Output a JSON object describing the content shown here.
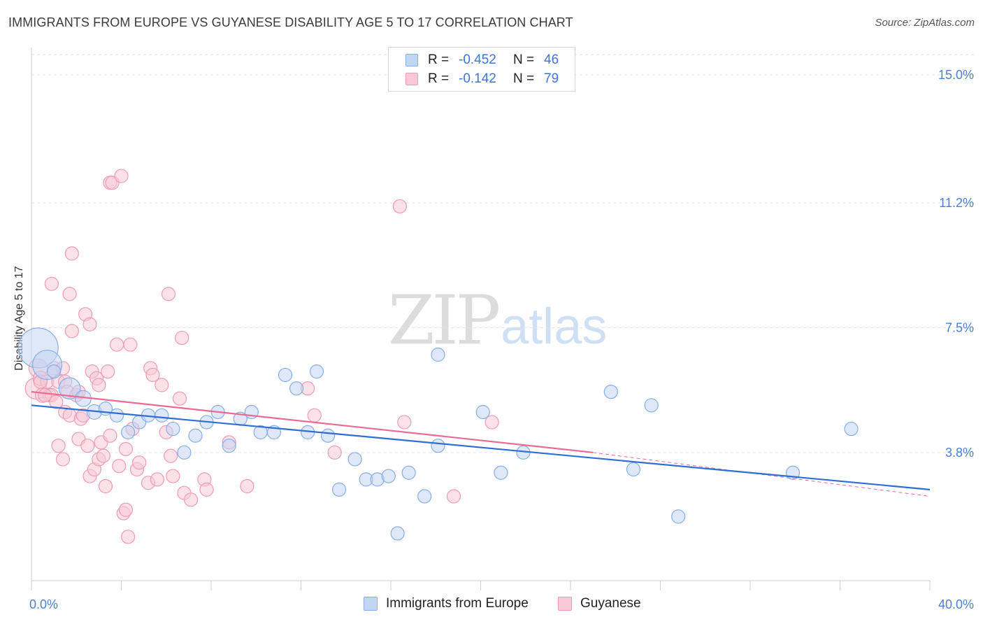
{
  "title": "IMMIGRANTS FROM EUROPE VS GUYANESE DISABILITY AGE 5 TO 17 CORRELATION CHART",
  "source": "Source: ZipAtlas.com",
  "watermark": {
    "left": "ZIP",
    "right": "atlas"
  },
  "colors": {
    "blue_fill": "#c2d6f3",
    "blue_stroke": "#86aee6",
    "blue_line": "#2f6ed2",
    "pink_fill": "#f8c8d6",
    "pink_stroke": "#ee9bb5",
    "pink_line": "#e86b93",
    "grid": "#e3e3e3",
    "axis_label": "#4a7fd4"
  },
  "legend": {
    "rows": [
      {
        "r_label": "R =",
        "r_value": "-0.452",
        "n_label": "N =",
        "n_value": "46",
        "color": "blue"
      },
      {
        "r_label": "R =",
        "r_value": "-0.142",
        "n_label": "N =",
        "n_value": "79",
        "color": "pink"
      }
    ]
  },
  "bottom_legend": [
    {
      "label": "Immigrants from Europe",
      "color": "blue"
    },
    {
      "label": "Guyanese",
      "color": "pink"
    }
  ],
  "chart_data": {
    "type": "scatter",
    "title": "IMMIGRANTS FROM EUROPE VS GUYANESE DISABILITY AGE 5 TO 17 CORRELATION CHART",
    "xlabel": "",
    "ylabel": "Disability Age 5 to 17",
    "xlim": [
      0,
      40
    ],
    "ylim": [
      0,
      15.6
    ],
    "x_tick_labels": [
      "0.0%",
      "40.0%"
    ],
    "y_ticks": [
      3.8,
      7.5,
      11.2,
      15.0
    ],
    "y_tick_labels": [
      "3.8%",
      "7.5%",
      "11.2%",
      "15.0%"
    ],
    "grid": true,
    "legend_position": "top-center",
    "series": [
      {
        "name": "Immigrants from Europe",
        "color": "blue",
        "r": -0.452,
        "n": 46,
        "trend": {
          "x": [
            0,
            40
          ],
          "y": [
            5.2,
            2.7
          ]
        },
        "points": [
          [
            0.3,
            6.9,
            3
          ],
          [
            0.7,
            6.4,
            2.2
          ],
          [
            1.7,
            5.7,
            1.6
          ],
          [
            2.3,
            5.4,
            1.2
          ],
          [
            2.8,
            5.0,
            1.1
          ],
          [
            3.3,
            5.1,
            1
          ],
          [
            3.8,
            4.9,
            1
          ],
          [
            4.3,
            4.4,
            1
          ],
          [
            4.8,
            4.7,
            1
          ],
          [
            5.2,
            4.9,
            1
          ],
          [
            5.8,
            4.9,
            1
          ],
          [
            6.3,
            4.5,
            1
          ],
          [
            6.8,
            3.8,
            1
          ],
          [
            7.3,
            4.3,
            1
          ],
          [
            7.8,
            4.7,
            1
          ],
          [
            8.3,
            5.0,
            1
          ],
          [
            8.8,
            4.0,
            1
          ],
          [
            9.3,
            4.8,
            1
          ],
          [
            9.8,
            5.0,
            1
          ],
          [
            10.2,
            4.4,
            1
          ],
          [
            10.8,
            4.4,
            1
          ],
          [
            11.3,
            6.1,
            1
          ],
          [
            11.8,
            5.7,
            1
          ],
          [
            12.3,
            4.4,
            1
          ],
          [
            12.7,
            6.2,
            1
          ],
          [
            13.2,
            4.3,
            1
          ],
          [
            13.7,
            2.7,
            1
          ],
          [
            14.4,
            3.6,
            1
          ],
          [
            14.9,
            3.0,
            1
          ],
          [
            15.4,
            3.0,
            1
          ],
          [
            15.9,
            3.1,
            1
          ],
          [
            16.3,
            1.4,
            1
          ],
          [
            16.8,
            3.2,
            1
          ],
          [
            17.5,
            2.5,
            1
          ],
          [
            18.1,
            6.7,
            1
          ],
          [
            18.1,
            4.0,
            1
          ],
          [
            20.1,
            5.0,
            1
          ],
          [
            20.9,
            3.2,
            1
          ],
          [
            21.9,
            3.8,
            1
          ],
          [
            25.8,
            5.6,
            1
          ],
          [
            26.8,
            3.3,
            1
          ],
          [
            27.6,
            5.2,
            1
          ],
          [
            28.8,
            1.9,
            1
          ],
          [
            33.9,
            3.2,
            1
          ],
          [
            36.5,
            4.5,
            1
          ],
          [
            1.0,
            6.2,
            1
          ]
        ]
      },
      {
        "name": "Guyanese",
        "color": "pink",
        "r": -0.142,
        "n": 79,
        "trend": {
          "x": [
            0,
            25
          ],
          "y": [
            5.6,
            3.8
          ],
          "dashed_extension": {
            "x": [
              25,
              40
            ],
            "y": [
              3.8,
              2.5
            ]
          }
        },
        "points": [
          [
            0.2,
            5.7,
            1.6
          ],
          [
            0.3,
            6.3,
            1.4
          ],
          [
            0.4,
            6.0,
            1.1
          ],
          [
            0.5,
            5.5,
            1.1
          ],
          [
            0.7,
            5.9,
            1
          ],
          [
            0.8,
            5.5,
            1
          ],
          [
            0.9,
            5.5,
            1
          ],
          [
            1.0,
            6.3,
            1
          ],
          [
            1.1,
            5.3,
            1
          ],
          [
            1.2,
            5.9,
            1
          ],
          [
            0.6,
            5.5,
            1
          ],
          [
            1.4,
            6.3,
            1
          ],
          [
            1.5,
            5.9,
            1
          ],
          [
            1.6,
            5.6,
            1
          ],
          [
            0.9,
            8.8,
            1
          ],
          [
            1.2,
            4.0,
            1
          ],
          [
            1.4,
            3.6,
            1
          ],
          [
            1.5,
            5.0,
            1
          ],
          [
            1.7,
            4.9,
            1
          ],
          [
            1.8,
            7.4,
            1
          ],
          [
            1.7,
            8.5,
            1
          ],
          [
            1.8,
            9.7,
            1
          ],
          [
            2.0,
            5.5,
            1
          ],
          [
            2.1,
            5.6,
            1
          ],
          [
            2.1,
            4.2,
            1
          ],
          [
            2.2,
            4.8,
            1
          ],
          [
            2.3,
            4.9,
            1
          ],
          [
            2.4,
            7.9,
            1
          ],
          [
            2.5,
            4.0,
            1
          ],
          [
            2.6,
            3.1,
            1
          ],
          [
            2.6,
            7.6,
            1
          ],
          [
            2.7,
            6.2,
            1
          ],
          [
            2.8,
            3.3,
            1
          ],
          [
            2.9,
            6.0,
            1
          ],
          [
            3.0,
            5.8,
            1
          ],
          [
            3.0,
            3.6,
            1
          ],
          [
            3.1,
            4.1,
            1
          ],
          [
            3.2,
            3.7,
            1
          ],
          [
            3.3,
            2.8,
            1
          ],
          [
            3.4,
            6.2,
            1
          ],
          [
            3.5,
            4.3,
            1
          ],
          [
            3.5,
            11.8,
            1
          ],
          [
            3.6,
            11.8,
            1
          ],
          [
            3.8,
            7.0,
            1
          ],
          [
            3.9,
            3.4,
            1
          ],
          [
            4.0,
            12.0,
            1
          ],
          [
            4.1,
            2.0,
            1
          ],
          [
            4.2,
            2.1,
            1
          ],
          [
            4.2,
            3.9,
            1
          ],
          [
            4.3,
            1.3,
            1
          ],
          [
            4.4,
            7.0,
            1
          ],
          [
            4.5,
            4.5,
            1
          ],
          [
            4.7,
            3.3,
            1
          ],
          [
            4.8,
            3.5,
            1
          ],
          [
            5.2,
            2.9,
            1
          ],
          [
            5.3,
            6.3,
            1
          ],
          [
            5.4,
            6.1,
            1
          ],
          [
            5.6,
            3.0,
            1
          ],
          [
            5.8,
            5.8,
            1
          ],
          [
            6.0,
            4.4,
            1
          ],
          [
            6.1,
            8.5,
            1
          ],
          [
            6.2,
            3.7,
            1
          ],
          [
            6.3,
            3.1,
            1
          ],
          [
            6.6,
            5.4,
            1
          ],
          [
            6.7,
            7.2,
            1
          ],
          [
            6.8,
            2.6,
            1
          ],
          [
            7.1,
            2.4,
            1
          ],
          [
            7.7,
            3.0,
            1
          ],
          [
            7.8,
            2.7,
            1
          ],
          [
            8.8,
            4.1,
            1
          ],
          [
            9.6,
            2.8,
            1
          ],
          [
            12.3,
            5.7,
            1
          ],
          [
            12.6,
            4.9,
            1
          ],
          [
            13.5,
            3.8,
            1
          ],
          [
            16.4,
            11.1,
            1
          ],
          [
            16.6,
            4.7,
            1
          ],
          [
            18.8,
            2.5,
            1
          ],
          [
            20.5,
            4.7,
            1
          ],
          [
            0.4,
            5.9,
            1
          ]
        ]
      }
    ]
  }
}
